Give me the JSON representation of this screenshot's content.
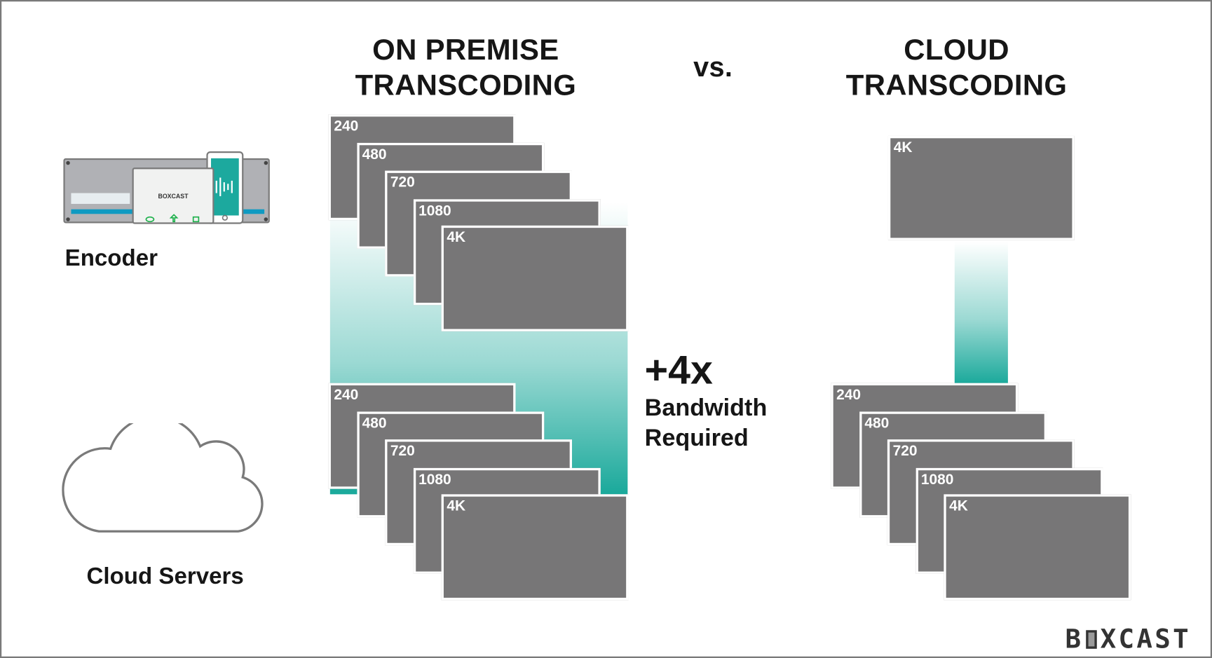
{
  "titles": {
    "left": [
      "ON PREMISE",
      "TRANSCODING"
    ],
    "vs": "vs.",
    "right": [
      "CLOUD",
      "TRANSCODING"
    ]
  },
  "labels": {
    "encoder": "Encoder",
    "cloud": "Cloud Servers"
  },
  "encoder_device": {
    "brand": "BOXCAST"
  },
  "resolutions": [
    "240",
    "480",
    "720",
    "1080",
    "4K"
  ],
  "cloud_top": "4K",
  "bandwidth": {
    "multiplier": "+4x",
    "line1": "Bandwidth",
    "line2": "Required"
  },
  "logo": {
    "text": "BOXCAST"
  },
  "colors": {
    "frame": "#777677",
    "teal": "#1aa99b",
    "text": "#161616"
  }
}
